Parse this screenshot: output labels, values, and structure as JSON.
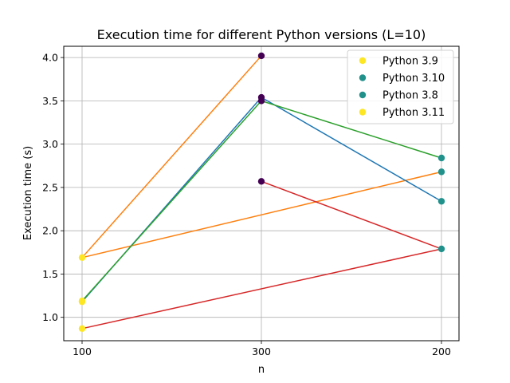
{
  "chart_data": {
    "type": "scatter",
    "title": "Execution time for different Python versions (L=10)",
    "xlabel": "n",
    "ylabel": "Execution time (s)",
    "categories": [
      "100",
      "300",
      "200"
    ],
    "y_ticks": [
      "1.0",
      "1.5",
      "2.0",
      "2.5",
      "3.0",
      "3.5",
      "4.0"
    ],
    "ylim": [
      0.73,
      4.13
    ],
    "grid": true,
    "legend_position": "top-right",
    "legend": [
      {
        "label": "Python 3.9",
        "color": "#fde725"
      },
      {
        "label": "Python 3.10",
        "color": "#21918c"
      },
      {
        "label": "Python 3.8",
        "color": "#21918c"
      },
      {
        "label": "Python 3.11",
        "color": "#fde725"
      }
    ],
    "lines": [
      {
        "color": "#ff7f0e",
        "points": [
          [
            0,
            1.69
          ],
          [
            1,
            4.02
          ]
        ]
      },
      {
        "color": "#ff7f0e",
        "points": [
          [
            0,
            1.69
          ],
          [
            2,
            2.68
          ]
        ]
      },
      {
        "color": "#1f77b4",
        "points": [
          [
            0,
            1.18
          ],
          [
            1,
            3.54
          ],
          [
            2,
            2.34
          ]
        ]
      },
      {
        "color": "#2ca02c",
        "points": [
          [
            0,
            1.19
          ],
          [
            1,
            3.5
          ],
          [
            2,
            2.84
          ]
        ]
      },
      {
        "color": "#d62728",
        "points": [
          [
            0,
            0.87
          ],
          [
            2,
            1.79
          ]
        ]
      },
      {
        "color": "#d62728",
        "points": [
          [
            1,
            2.57
          ],
          [
            2,
            1.79
          ]
        ]
      }
    ],
    "points": [
      {
        "x": 0,
        "y": 1.69,
        "color": "#fde725"
      },
      {
        "x": 0,
        "y": 1.19,
        "color": "#fde725"
      },
      {
        "x": 0,
        "y": 1.18,
        "color": "#fde725"
      },
      {
        "x": 0,
        "y": 0.87,
        "color": "#fde725"
      },
      {
        "x": 1,
        "y": 4.02,
        "color": "#440154"
      },
      {
        "x": 1,
        "y": 3.54,
        "color": "#440154"
      },
      {
        "x": 1,
        "y": 3.5,
        "color": "#440154"
      },
      {
        "x": 1,
        "y": 2.57,
        "color": "#440154"
      },
      {
        "x": 2,
        "y": 2.84,
        "color": "#21918c"
      },
      {
        "x": 2,
        "y": 2.68,
        "color": "#21918c"
      },
      {
        "x": 2,
        "y": 2.34,
        "color": "#21918c"
      },
      {
        "x": 2,
        "y": 1.79,
        "color": "#21918c"
      }
    ]
  }
}
